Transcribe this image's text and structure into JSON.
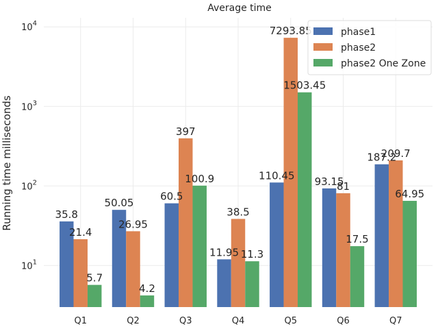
{
  "chart_data": {
    "type": "bar",
    "title": "Average time",
    "xlabel": "",
    "ylabel": "Running time milliseconds",
    "yscale": "log",
    "ylim": [
      3.0,
      13000
    ],
    "yticks": [
      {
        "value": 10,
        "base": "10",
        "exp": "1"
      },
      {
        "value": 100,
        "base": "10",
        "exp": "2"
      },
      {
        "value": 1000,
        "base": "10",
        "exp": "3"
      },
      {
        "value": 10000,
        "base": "10",
        "exp": "4"
      }
    ],
    "grid": true,
    "legend": "top-right",
    "categories": [
      "Q1",
      "Q2",
      "Q3",
      "Q4",
      "Q5",
      "Q6",
      "Q7"
    ],
    "series": [
      {
        "name": "phase1",
        "color": "#4c72b0",
        "values": [
          35.8,
          50.05,
          60.5,
          11.95,
          110.45,
          93.15,
          187.2
        ],
        "labels": [
          "35.8",
          "50.05",
          "60.5",
          "11.95",
          "110.45",
          "93.15",
          "187.2"
        ]
      },
      {
        "name": "phase2",
        "color": "#dd8452",
        "values": [
          21.4,
          26.95,
          397,
          38.5,
          7293.85,
          81,
          209.7
        ],
        "labels": [
          "21.4",
          "26.95",
          "397",
          "38.5",
          "7293.85",
          "81",
          "209.7"
        ]
      },
      {
        "name": "phase2 One Zone",
        "color": "#55a868",
        "values": [
          5.7,
          4.2,
          100.9,
          11.3,
          1503.45,
          17.5,
          64.95
        ],
        "labels": [
          "5.7",
          "4.2",
          "100.9",
          "11.3",
          "1503.45",
          "17.5",
          "64.95"
        ]
      }
    ]
  }
}
